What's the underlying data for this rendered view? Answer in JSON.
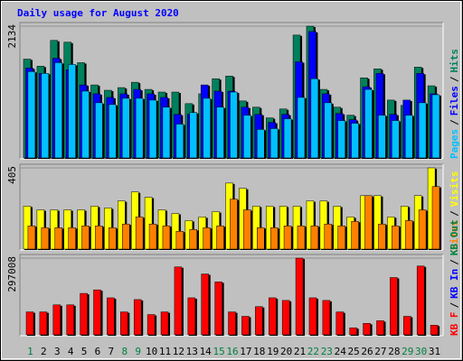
{
  "title": "Daily usage for August 2020",
  "chart_data": [
    {
      "type": "bar",
      "ylim": [
        0,
        2134
      ],
      "yticks": [
        2134
      ],
      "legend_separator": "/",
      "series": [
        {
          "name": "Hits",
          "color": "#00805c",
          "values": [
            1604,
            1490,
            1905,
            1876,
            1547,
            1189,
            1103,
            1146,
            1232,
            1117,
            1074,
            1074,
            888,
            1046,
            1289,
            1332,
            931,
            831,
            659,
            802,
            1991,
            2134,
            1117,
            831,
            702,
            1303,
            1447,
            945,
            859,
            1475,
            1175
          ]
        },
        {
          "name": "Files",
          "color": "#0000ff",
          "values": [
            1461,
            1375,
            1618,
            1432,
            1189,
            1046,
            988,
            1046,
            1117,
            1046,
            988,
            716,
            716,
            1189,
            1089,
            1089,
            831,
            716,
            587,
            716,
            1561,
            2048,
            1046,
            730,
            630,
            1160,
            1375,
            716,
            945,
            1375,
            1046
          ]
        },
        {
          "name": "Pages",
          "color": "#00c0ff",
          "values": [
            1404,
            1375,
            1547,
            1518,
            1089,
            902,
            873,
            974,
            974,
            945,
            831,
            559,
            745,
            974,
            831,
            1074,
            702,
            473,
            487,
            645,
            988,
            1289,
            902,
            616,
            573,
            1117,
            702,
            616,
            702,
            902,
            1031
          ]
        }
      ]
    },
    {
      "type": "bar",
      "ylim": [
        0,
        405
      ],
      "yticks": [
        405
      ],
      "legend_separator": "/",
      "series": [
        {
          "name": "Visits",
          "color": "#ffff00",
          "values": [
            216,
            198,
            198,
            198,
            198,
            216,
            207,
            242,
            286,
            260,
            198,
            180,
            145,
            163,
            189,
            330,
            304,
            216,
            216,
            216,
            216,
            242,
            242,
            216,
            163,
            268,
            268,
            163,
            216,
            268,
            405
          ]
        },
        {
          "name": "Sites",
          "color": "#ff8000",
          "values": [
            119,
            110,
            110,
            110,
            119,
            119,
            110,
            128,
            163,
            128,
            119,
            92,
            101,
            110,
            119,
            251,
            198,
            110,
            110,
            119,
            119,
            119,
            128,
            119,
            141,
            268,
            128,
            119,
            145,
            198,
            313
          ]
        }
      ]
    },
    {
      "type": "bar",
      "ylim": [
        0,
        297008
      ],
      "yticks": [
        297008
      ],
      "legend_separator": "/",
      "series": [
        {
          "name": "KB F",
          "color": "#ff0000",
          "values": [
            91126,
            91126,
            118126,
            118126,
            162007,
            175508,
            145127,
            91126,
            138377,
            81002,
            91126,
            263257,
            145127,
            236256,
            205880,
            91126,
            74252,
            111377,
            145127,
            135002,
            297008,
            145127,
            135002,
            91126,
            30376,
            47251,
            57376,
            222756,
            74252,
            266632,
            40501
          ]
        }
      ],
      "extra_legend": [
        {
          "name": "KB In",
          "color": "#0000ff"
        },
        {
          "name": "KB Out",
          "color": "#008040"
        }
      ],
      "categories": [
        "1",
        "2",
        "3",
        "4",
        "5",
        "6",
        "7",
        "8",
        "9",
        "10",
        "11",
        "12",
        "13",
        "14",
        "15",
        "16",
        "17",
        "18",
        "19",
        "20",
        "21",
        "22",
        "23",
        "24",
        "25",
        "26",
        "27",
        "28",
        "29",
        "30",
        "31"
      ],
      "category_colors": [
        "#008040",
        "#000000",
        "#000000",
        "#000000",
        "#000000",
        "#000000",
        "#000000",
        "#008040",
        "#008040",
        "#000000",
        "#000000",
        "#000000",
        "#000000",
        "#000000",
        "#008040",
        "#008040",
        "#000000",
        "#000000",
        "#000000",
        "#000000",
        "#000000",
        "#008040",
        "#008040",
        "#000000",
        "#000000",
        "#000000",
        "#000000",
        "#000000",
        "#008040",
        "#008040",
        "#000000"
      ]
    }
  ]
}
